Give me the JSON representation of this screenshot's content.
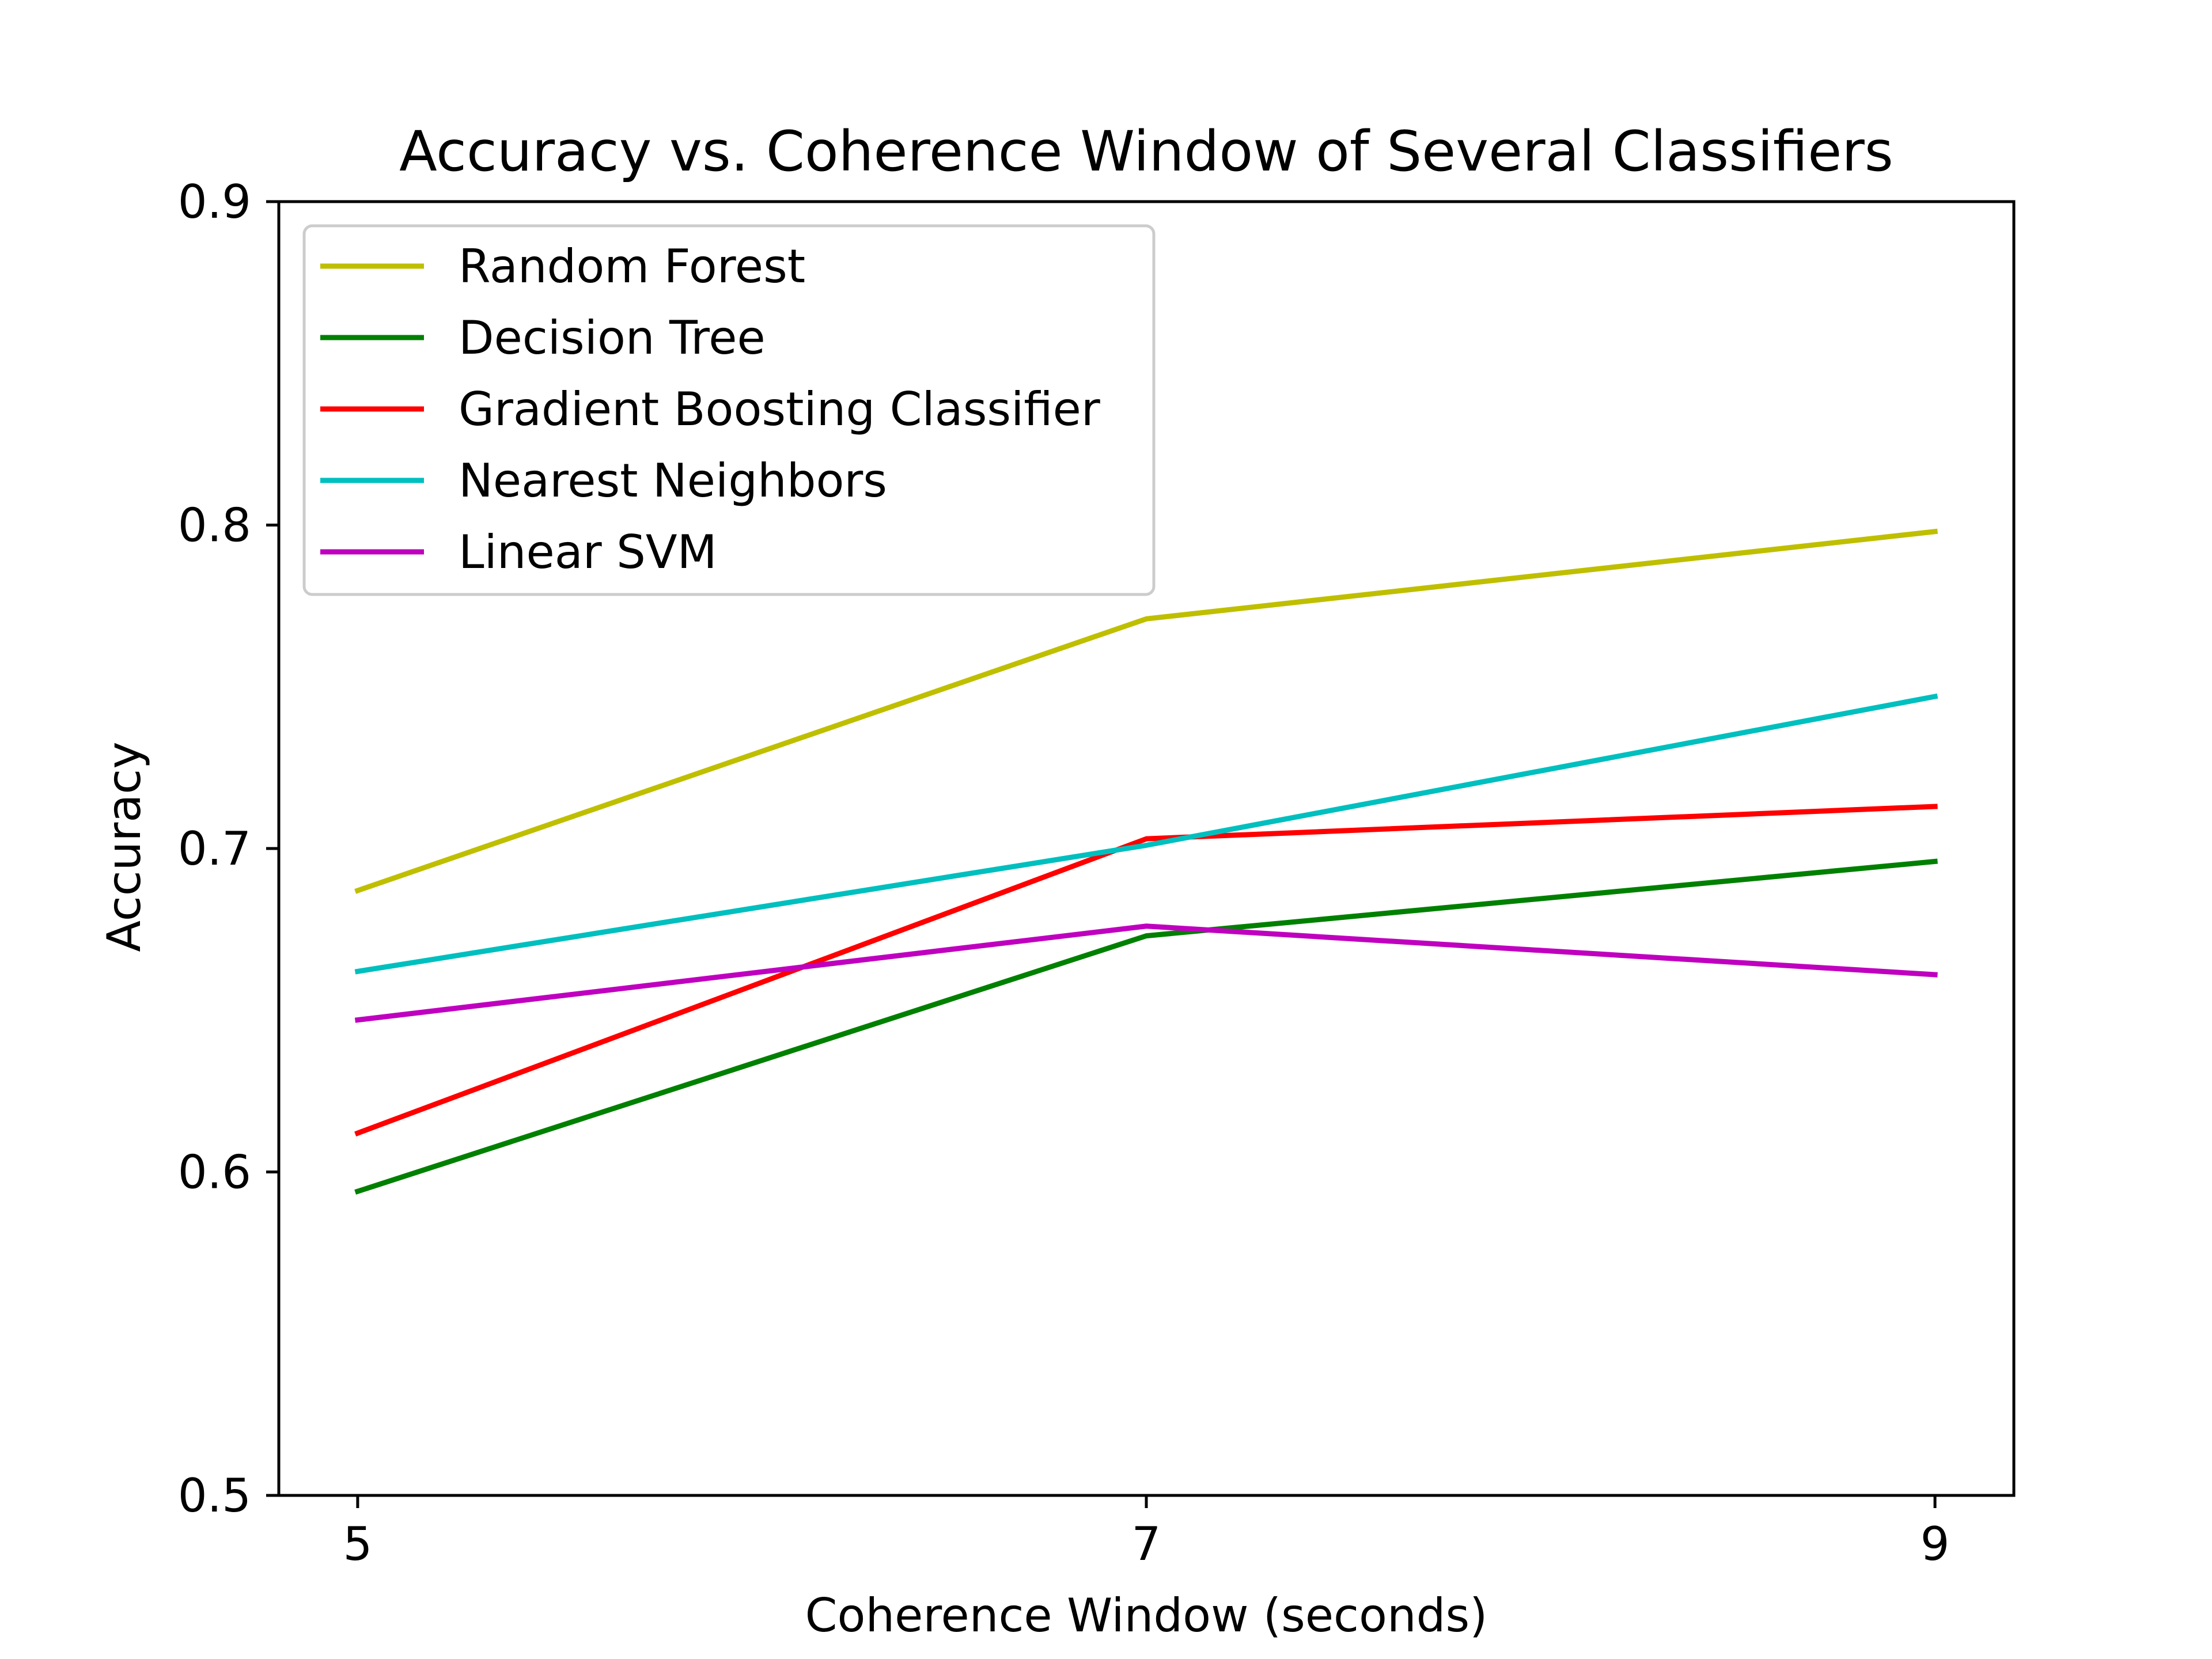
{
  "chart_data": {
    "type": "line",
    "title": "Accuracy vs. Coherence Window of Several Classifiers",
    "xlabel": "Coherence Window (seconds)",
    "ylabel": "Accuracy",
    "x": [
      5,
      7,
      9
    ],
    "x_ticks": [
      "5",
      "7",
      "9"
    ],
    "xlim": [
      4.8,
      9.2
    ],
    "ylim": [
      0.5,
      0.9
    ],
    "y_ticks": [
      "0.5",
      "0.6",
      "0.7",
      "0.8",
      "0.9"
    ],
    "grid": false,
    "legend_position": "top-left",
    "series": [
      {
        "name": "Random Forest",
        "color": "#bfbf00",
        "values": [
          0.687,
          0.771,
          0.798
        ]
      },
      {
        "name": "Decision Tree",
        "color": "#008000",
        "values": [
          0.594,
          0.673,
          0.696
        ]
      },
      {
        "name": "Gradient Boosting Classifier",
        "color": "#ff0000",
        "values": [
          0.612,
          0.703,
          0.713
        ]
      },
      {
        "name": "Nearest Neighbors",
        "color": "#00bfbf",
        "values": [
          0.662,
          0.701,
          0.747
        ]
      },
      {
        "name": "Linear SVM",
        "color": "#bf00bf",
        "values": [
          0.647,
          0.676,
          0.661
        ]
      }
    ]
  }
}
